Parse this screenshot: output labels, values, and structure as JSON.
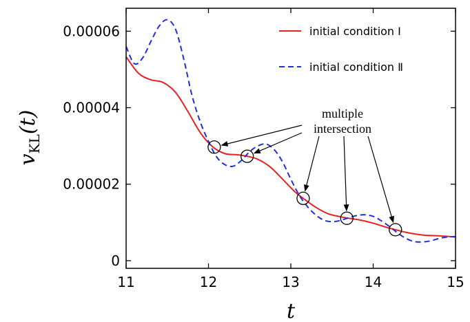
{
  "chart_data": {
    "type": "line",
    "xlabel": "t",
    "ylabel": {
      "main": "v",
      "subscript": "KL",
      "arg": "(t)"
    },
    "xlim": [
      11,
      15
    ],
    "ylim": [
      -2e-06,
      6.6e-05
    ],
    "x_ticks": [
      11,
      12,
      13,
      14,
      15
    ],
    "x_tick_labels": [
      "11",
      "12",
      "13",
      "14",
      "15"
    ],
    "y_ticks": [
      0,
      2e-05,
      4e-05,
      6e-05
    ],
    "y_tick_labels": [
      "0",
      "0.00002",
      "0.00004",
      "0.00006"
    ],
    "grid": false,
    "legend_position": "top-right",
    "series": [
      {
        "name": "initial condition Ⅰ",
        "color": "#e8211f",
        "style": "solid",
        "points": [
          [
            11.0,
            5.33e-05
          ],
          [
            11.15,
            4.9e-05
          ],
          [
            11.3,
            4.73e-05
          ],
          [
            11.45,
            4.66e-05
          ],
          [
            11.6,
            4.4e-05
          ],
          [
            11.75,
            3.9e-05
          ],
          [
            11.9,
            3.35e-05
          ],
          [
            12.05,
            2.98e-05
          ],
          [
            12.2,
            2.8e-05
          ],
          [
            12.35,
            2.77e-05
          ],
          [
            12.47,
            2.73e-05
          ],
          [
            12.6,
            2.65e-05
          ],
          [
            12.75,
            2.45e-05
          ],
          [
            12.9,
            2.13e-05
          ],
          [
            13.05,
            1.8e-05
          ],
          [
            13.15,
            1.63e-05
          ],
          [
            13.3,
            1.4e-05
          ],
          [
            13.45,
            1.23e-05
          ],
          [
            13.6,
            1.15e-05
          ],
          [
            13.7,
            1.11e-05
          ],
          [
            13.85,
            1.06e-05
          ],
          [
            14.0,
            9.8e-06
          ],
          [
            14.15,
            8.8e-06
          ],
          [
            14.27,
            8.1e-06
          ],
          [
            14.4,
            7.4e-06
          ],
          [
            14.6,
            6.7e-06
          ],
          [
            14.8,
            6.5e-06
          ],
          [
            15.0,
            6.2e-06
          ]
        ]
      },
      {
        "name": "initial condition Ⅱ",
        "color": "#1f2ee0",
        "style": "dashed",
        "points": [
          [
            11.0,
            5.6e-05
          ],
          [
            11.1,
            5.15e-05
          ],
          [
            11.2,
            5.3e-05
          ],
          [
            11.3,
            5.73e-05
          ],
          [
            11.4,
            6.13e-05
          ],
          [
            11.5,
            6.3e-05
          ],
          [
            11.6,
            6.05e-05
          ],
          [
            11.7,
            5.27e-05
          ],
          [
            11.8,
            4.32e-05
          ],
          [
            11.9,
            3.63e-05
          ],
          [
            12.0,
            3.12e-05
          ],
          [
            12.1,
            2.71e-05
          ],
          [
            12.2,
            2.51e-05
          ],
          [
            12.3,
            2.47e-05
          ],
          [
            12.4,
            2.62e-05
          ],
          [
            12.5,
            2.85e-05
          ],
          [
            12.6,
            3e-05
          ],
          [
            12.7,
            3.05e-05
          ],
          [
            12.8,
            2.9e-05
          ],
          [
            12.9,
            2.58e-05
          ],
          [
            13.0,
            2.13e-05
          ],
          [
            13.1,
            1.72e-05
          ],
          [
            13.2,
            1.42e-05
          ],
          [
            13.3,
            1.2e-05
          ],
          [
            13.4,
            1.06e-05
          ],
          [
            13.5,
            1.02e-05
          ],
          [
            13.6,
            1.05e-05
          ],
          [
            13.7,
            1.12e-05
          ],
          [
            13.8,
            1.18e-05
          ],
          [
            13.9,
            1.2e-05
          ],
          [
            14.0,
            1.16e-05
          ],
          [
            14.1,
            1.04e-05
          ],
          [
            14.2,
            8.9e-06
          ],
          [
            14.3,
            7.2e-06
          ],
          [
            14.4,
            5.8e-06
          ],
          [
            14.5,
            5e-06
          ],
          [
            14.6,
            4.9e-06
          ],
          [
            14.7,
            5.2e-06
          ],
          [
            14.8,
            5.8e-06
          ],
          [
            14.9,
            6.2e-06
          ],
          [
            15.0,
            6.3e-06
          ]
        ]
      }
    ],
    "annotation": {
      "lines": [
        "multiple",
        "intersection"
      ],
      "markers": [
        [
          12.07,
          2.97e-05
        ],
        [
          12.47,
          2.73e-05
        ],
        [
          13.15,
          1.63e-05
        ],
        [
          13.68,
          1.11e-05
        ],
        [
          14.27,
          8.1e-06
        ]
      ]
    }
  }
}
